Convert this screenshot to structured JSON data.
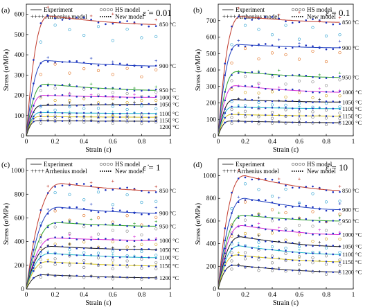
{
  "colors": {
    "850": "#c0392b",
    "900": "#1f3fbf",
    "950": "#2ca02c",
    "1000": "#d62dd6",
    "1050": "#111111",
    "1100": "#1fb5c9",
    "1150": "#d4c21a",
    "1200": "#222222",
    "hs_850": "#2aa0d0",
    "hs_900": "#e07020",
    "hs_950": "#8a8a8a",
    "hs_1000": "#d4a017",
    "hs_1050": "#2aa0d0",
    "hs_1100": "#7a7a7a"
  },
  "legend": {
    "experiment": "Experiment",
    "hs": "HS model",
    "arrhenius": "Arrhenius model",
    "new": "New model"
  },
  "chart_data": [
    {
      "type": "line",
      "panel_label": "(a)",
      "rate_label": "0.01",
      "xlabel": "Strain (ε)",
      "ylabel": "Stress (σ/MPa)",
      "xlim": [
        0,
        1
      ],
      "ylim": [
        0,
        650
      ],
      "xticks": [
        "0",
        "0.2",
        "0.4",
        "0.6",
        "0.8",
        "1"
      ],
      "yticks": [
        "0",
        "100",
        "200",
        "300",
        "400",
        "500",
        "600"
      ],
      "series": [
        {
          "name": "850 °C",
          "key": "850",
          "peak": 592,
          "peak_x": 0.16,
          "end": 550
        },
        {
          "name": "900 °C",
          "key": "900",
          "peak": 372,
          "peak_x": 0.14,
          "end": 345
        },
        {
          "name": "950 °C",
          "key": "950",
          "peak": 255,
          "peak_x": 0.13,
          "end": 225
        },
        {
          "name": "1000 °C",
          "key": "1000",
          "peak": 200,
          "peak_x": 0.12,
          "end": 190
        },
        {
          "name": "1050 °C",
          "key": "1050",
          "peak": 150,
          "peak_x": 0.11,
          "end": 155
        },
        {
          "name": "1100 °C",
          "key": "1100",
          "peak": 115,
          "peak_x": 0.1,
          "end": 110
        },
        {
          "name": "1150 °C",
          "key": "1150",
          "peak": 95,
          "peak_x": 0.09,
          "end": 92
        },
        {
          "name": "1200 °C",
          "key": "1200",
          "peak": 75,
          "peak_x": 0.08,
          "end": 72
        }
      ]
    },
    {
      "type": "line",
      "panel_label": "(b)",
      "rate_label": "0.1",
      "xlabel": "Strain (ε)",
      "ylabel": "Stress (σ/MPa)",
      "xlim": [
        0,
        1
      ],
      "ylim": [
        0,
        800
      ],
      "xticks": [
        "0",
        "0.2",
        "0.4",
        "0.6",
        "0.8",
        "1"
      ],
      "yticks": [
        "0",
        "100",
        "200",
        "300",
        "400",
        "500",
        "600",
        "700"
      ],
      "series": [
        {
          "name": "850 °C",
          "key": "850",
          "peak": 725,
          "peak_x": 0.17,
          "end": 690
        },
        {
          "name": "900 °C",
          "key": "900",
          "peak": 555,
          "peak_x": 0.15,
          "end": 535
        },
        {
          "name": "950 °C",
          "key": "950",
          "peak": 390,
          "peak_x": 0.14,
          "end": 355
        },
        {
          "name": "1000 °C",
          "key": "1000",
          "peak": 305,
          "peak_x": 0.13,
          "end": 265
        },
        {
          "name": "1050 °C",
          "key": "1050",
          "peak": 220,
          "peak_x": 0.12,
          "end": 205
        },
        {
          "name": "1100 °C",
          "key": "1100",
          "peak": 175,
          "peak_x": 0.11,
          "end": 165
        },
        {
          "name": "1150 °C",
          "key": "1150",
          "peak": 130,
          "peak_x": 0.1,
          "end": 120
        },
        {
          "name": "1200 °C",
          "key": "1200",
          "peak": 90,
          "peak_x": 0.09,
          "end": 80
        }
      ]
    },
    {
      "type": "line",
      "panel_label": "(c)",
      "rate_label": "1",
      "xlabel": "Strain (ε)",
      "ylabel": "Stress (σ/MPa)",
      "xlim": [
        0,
        1
      ],
      "ylim": [
        0,
        1100
      ],
      "xticks": [
        "0",
        "0.2",
        "0.4",
        "0.6",
        "0.8",
        "1"
      ],
      "yticks": [
        "0",
        "200",
        "400",
        "600",
        "800",
        "1000"
      ],
      "series": [
        {
          "name": "850 °C",
          "key": "850",
          "peak": 890,
          "peak_x": 0.25,
          "end": 830
        },
        {
          "name": "900 °C",
          "key": "900",
          "peak": 690,
          "peak_x": 0.23,
          "end": 640
        },
        {
          "name": "950 °C",
          "key": "950",
          "peak": 560,
          "peak_x": 0.22,
          "end": 530
        },
        {
          "name": "1000 °C",
          "key": "1000",
          "peak": 430,
          "peak_x": 0.2,
          "end": 410
        },
        {
          "name": "1050 °C",
          "key": "1050",
          "peak": 360,
          "peak_x": 0.18,
          "end": 330
        },
        {
          "name": "1100 °C",
          "key": "1100",
          "peak": 300,
          "peak_x": 0.17,
          "end": 265
        },
        {
          "name": "1150 °C",
          "key": "1150",
          "peak": 230,
          "peak_x": 0.15,
          "end": 195
        },
        {
          "name": "1200 °C",
          "key": "1200",
          "peak": 120,
          "peak_x": 0.12,
          "end": 95
        }
      ]
    },
    {
      "type": "line",
      "panel_label": "(d)",
      "rate_label": "10",
      "xlabel": "Strain (ε)",
      "ylabel": "Stress (σ/MPa)",
      "xlim": [
        0,
        1
      ],
      "ylim": [
        0,
        1150
      ],
      "xticks": [
        "0",
        "0.2",
        "0.4",
        "0.6",
        "0.8",
        "1"
      ],
      "yticks": [
        "0",
        "200",
        "400",
        "600",
        "800",
        "1000"
      ],
      "series": [
        {
          "name": "850 °C",
          "key": "850",
          "peak": 1000,
          "peak_x": 0.2,
          "end": 870
        },
        {
          "name": "900 °C",
          "key": "900",
          "peak": 800,
          "peak_x": 0.2,
          "end": 700
        },
        {
          "name": "950 °C",
          "key": "950",
          "peak": 650,
          "peak_x": 0.19,
          "end": 600
        },
        {
          "name": "1000 °C",
          "key": "1000",
          "peak": 560,
          "peak_x": 0.18,
          "end": 480
        },
        {
          "name": "1050 °C",
          "key": "1050",
          "peak": 460,
          "peak_x": 0.17,
          "end": 375
        },
        {
          "name": "1100 °C",
          "key": "1100",
          "peak": 380,
          "peak_x": 0.16,
          "end": 305
        },
        {
          "name": "1150 °C",
          "key": "1150",
          "peak": 300,
          "peak_x": 0.14,
          "end": 240
        },
        {
          "name": "1200 °C",
          "key": "1200",
          "peak": 210,
          "peak_x": 0.12,
          "end": 150
        }
      ]
    }
  ]
}
